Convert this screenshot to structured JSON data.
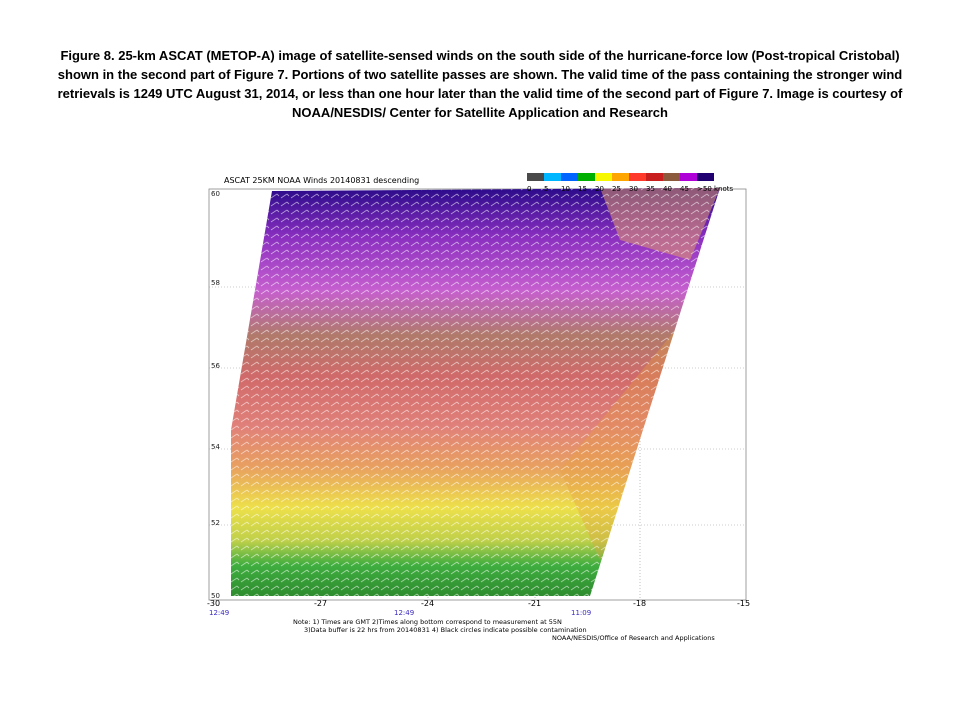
{
  "caption": "Figure 8.  25-km ASCAT (METOP-A) image of satellite-sensed winds on the south side of the hurricane-force low (Post-tropical Cristobal) shown in the second part of Figure 7.  Portions of two satellite passes are shown.  The valid time of the pass containing the stronger wind retrievals is 1249 UTC August 31, 2014,  or less than one hour later than the valid time of the second part of Figure 7.  Image is courtesy of NOAA/NESDIS/ Center for Satellite Application and Research",
  "plot": {
    "title": "ASCAT 25KM NOAA Winds 20140831  descending",
    "legend": {
      "labels": [
        "0",
        "5",
        "10",
        "15",
        "20",
        "25",
        "30",
        "35",
        "40",
        "45",
        ">50 knots"
      ],
      "colors": [
        "#4a4a4a",
        "#00b7ff",
        "#0064ff",
        "#00b000",
        "#f7f700",
        "#ffa500",
        "#ff3a2a",
        "#c81e1e",
        "#8b5a3c",
        "#b000d8",
        "#200070"
      ]
    },
    "y_ticks": [
      "60",
      "58",
      "56",
      "54",
      "52",
      "50"
    ],
    "x_ticks": [
      "-30",
      "-27",
      "-24",
      "-21",
      "-18",
      "-15"
    ],
    "times": [
      "12:49",
      "12:49",
      "11:09"
    ],
    "notes": [
      "Note: 1) Times are GMT 2)Times along bottom correspond to measurement at 55N",
      "3)Data buffer is 22 hrs from 20140831 4) Black circles indicate possible contamination",
      "NOAA/NESDIS/Office of Research and Applications"
    ]
  }
}
